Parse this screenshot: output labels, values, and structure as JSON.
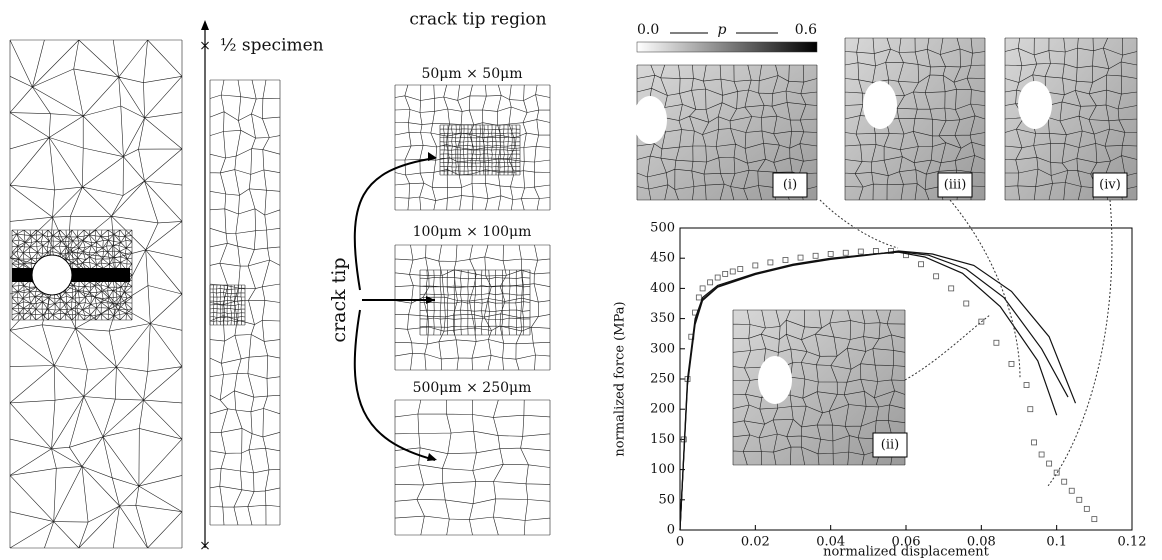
{
  "panels": {
    "specimen_label": "½ specimen",
    "region_title": "crack tip region",
    "region_sizes": [
      "50μm × 50μm",
      "100μm × 100μm",
      "500μm × 250μm"
    ],
    "crack_tip_label": "crack tip",
    "colorbar": {
      "min_label": "0.0",
      "symbol": "p",
      "max_label": "0.6"
    },
    "insets": [
      "(i)",
      "(ii)",
      "(iii)",
      "(iv)"
    ]
  },
  "chart_data": {
    "type": "line",
    "x_label": "normalized displacement",
    "y_label": "normalized force (MPa)",
    "xlim": [
      0,
      0.12
    ],
    "ylim": [
      0,
      500
    ],
    "xticks": [
      0,
      0.02,
      0.04,
      0.06,
      0.08,
      0.1,
      0.12
    ],
    "yticks": [
      0,
      50,
      100,
      150,
      200,
      250,
      300,
      350,
      400,
      450,
      500
    ],
    "series": [
      {
        "style": "markers",
        "color": "#555555",
        "x": [
          0.001,
          0.002,
          0.003,
          0.004,
          0.005,
          0.006,
          0.008,
          0.01,
          0.012,
          0.014,
          0.016,
          0.02,
          0.024,
          0.028,
          0.032,
          0.036,
          0.04,
          0.044,
          0.048,
          0.052,
          0.056,
          0.06,
          0.064,
          0.068,
          0.072,
          0.076,
          0.08,
          0.084,
          0.088,
          0.092,
          0.093,
          0.094,
          0.096,
          0.098,
          0.1,
          0.102,
          0.104,
          0.106,
          0.108,
          0.11
        ],
        "values": [
          150,
          250,
          320,
          360,
          385,
          400,
          410,
          418,
          424,
          428,
          432,
          438,
          443,
          447,
          451,
          454,
          457,
          459,
          461,
          462,
          462,
          455,
          440,
          420,
          400,
          375,
          345,
          310,
          275,
          240,
          200,
          145,
          125,
          110,
          95,
          80,
          65,
          50,
          35,
          18
        ]
      },
      {
        "style": "line",
        "color": "#111111",
        "x": [
          0,
          0.002,
          0.004,
          0.006,
          0.01,
          0.02,
          0.03,
          0.04,
          0.05,
          0.058,
          0.065,
          0.075,
          0.085,
          0.095,
          0.1
        ],
        "values": [
          0,
          250,
          350,
          385,
          405,
          425,
          440,
          450,
          456,
          460,
          452,
          425,
          370,
          280,
          190
        ]
      },
      {
        "style": "line",
        "color": "#111111",
        "x": [
          0,
          0.002,
          0.004,
          0.006,
          0.01,
          0.02,
          0.03,
          0.04,
          0.05,
          0.058,
          0.066,
          0.076,
          0.086,
          0.096,
          0.103
        ],
        "values": [
          0,
          245,
          345,
          382,
          403,
          424,
          439,
          449,
          456,
          461,
          455,
          432,
          385,
          300,
          220
        ]
      },
      {
        "style": "line",
        "color": "#111111",
        "x": [
          0,
          0.002,
          0.004,
          0.006,
          0.01,
          0.02,
          0.03,
          0.04,
          0.05,
          0.058,
          0.067,
          0.078,
          0.088,
          0.098,
          0.105
        ],
        "values": [
          0,
          240,
          340,
          380,
          402,
          423,
          438,
          448,
          455,
          462,
          457,
          438,
          395,
          320,
          210
        ]
      }
    ]
  }
}
